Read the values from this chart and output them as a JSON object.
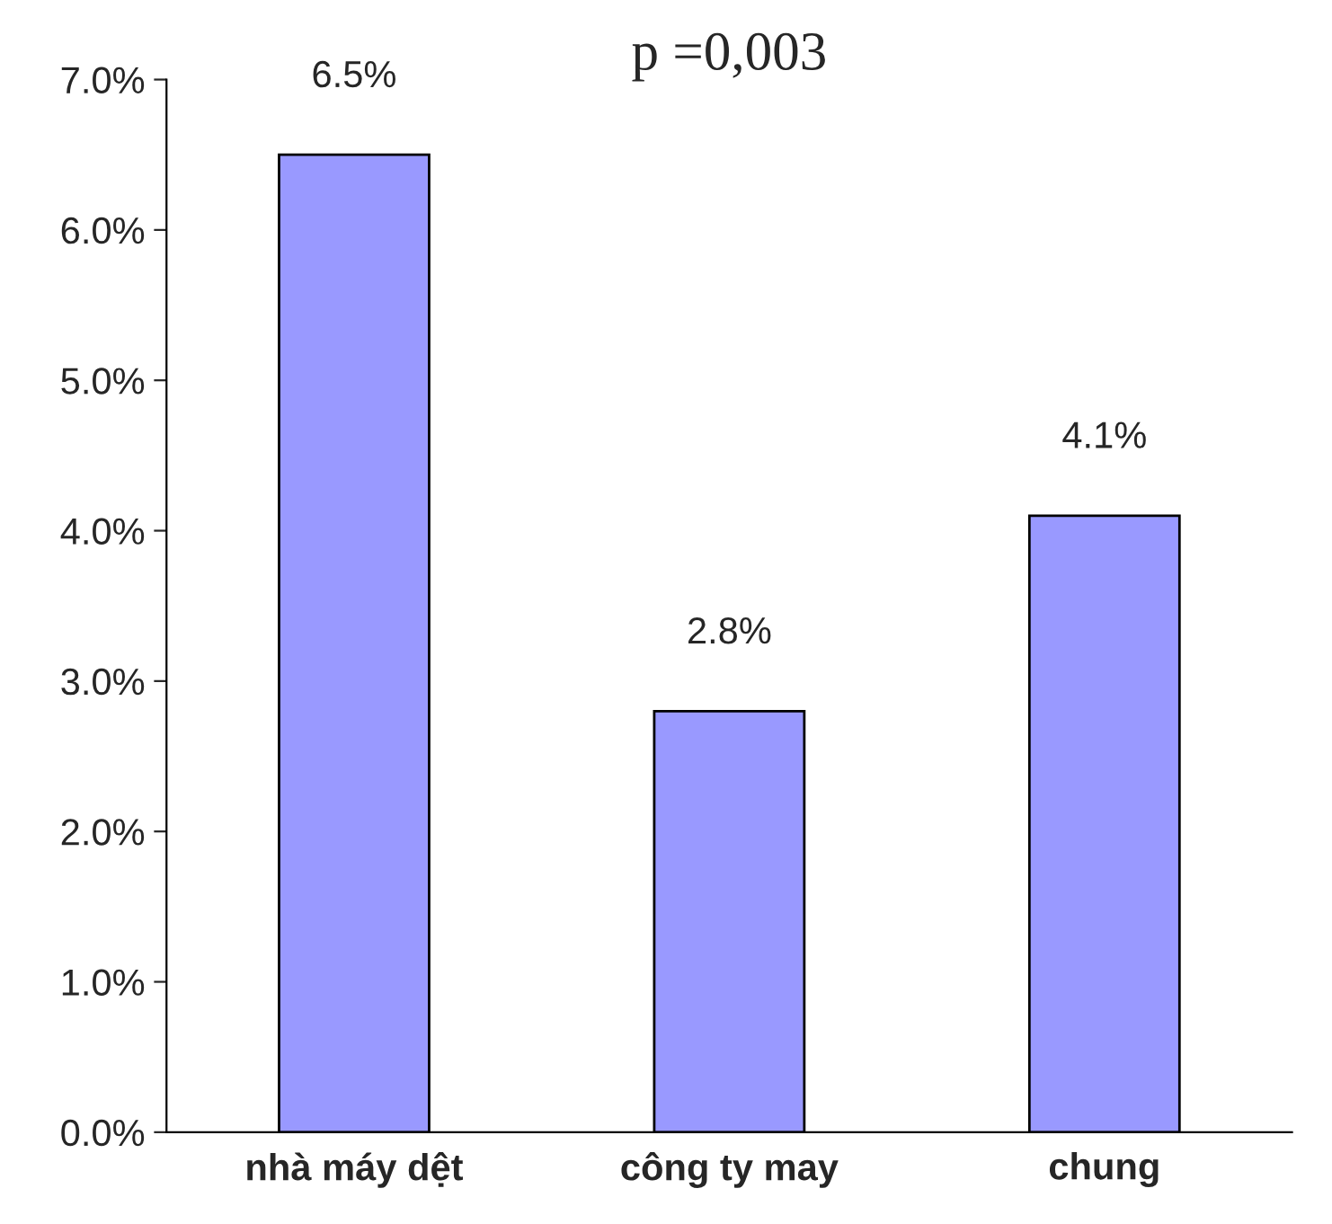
{
  "chart_data": {
    "type": "bar",
    "title": "p =0,003",
    "categories": [
      "nhà máy dệt",
      "công ty may",
      "chung"
    ],
    "values": [
      6.5,
      2.8,
      4.1
    ],
    "value_labels": [
      "6.5%",
      "2.8%",
      "4.1%"
    ],
    "color": "#9999ff",
    "ylim": [
      0,
      7
    ],
    "yticks": [
      {
        "value": 0,
        "label": "0.0%"
      },
      {
        "value": 1,
        "label": "1.0%"
      },
      {
        "value": 2,
        "label": "2.0%"
      },
      {
        "value": 3,
        "label": "3.0%"
      },
      {
        "value": 4,
        "label": "4.0%"
      },
      {
        "value": 5,
        "label": "5.0%"
      },
      {
        "value": 6,
        "label": "6.0%"
      },
      {
        "value": 7,
        "label": "7.0%"
      }
    ],
    "grid": false,
    "legend": false
  }
}
